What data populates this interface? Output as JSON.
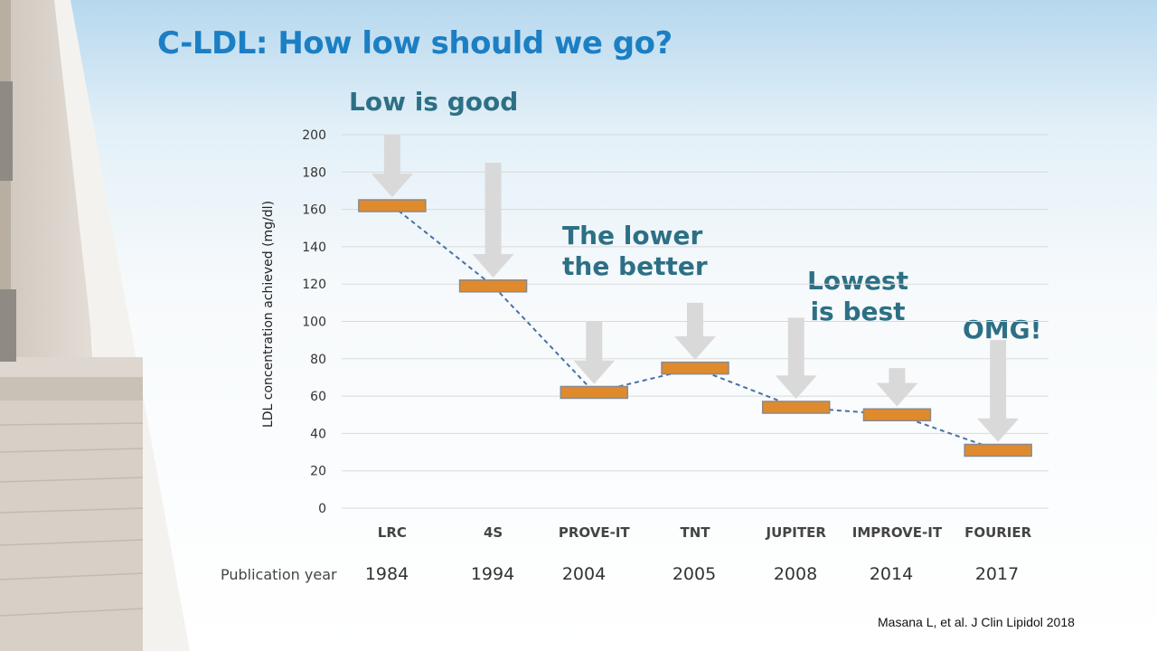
{
  "slide": {
    "title": "C-LDL: How low should we go?",
    "citation": "Masana L, et al. J Clin Lipidol 2018",
    "callouts": {
      "low_is_good": "Low is good",
      "lower_better_1": "The lower",
      "lower_better_2": "the better",
      "lowest_best_1": "Lowest",
      "lowest_best_2": "is best",
      "omg": "OMG!"
    }
  },
  "colors": {
    "title": "#1c7fc4",
    "callout": "#2d7085",
    "bar_fill": "#e08a2e",
    "bar_stroke": "#8a8a8a",
    "arrow": "#d9d9d9",
    "trend_line": "#4a6fa5",
    "gridline": "#d9d9d9"
  },
  "chart_data": {
    "type": "line",
    "ylabel": "LDL concentration achieved  (mg/dl)",
    "ylim": [
      0,
      200
    ],
    "yticks": [
      0,
      20,
      40,
      60,
      80,
      100,
      120,
      140,
      160,
      180,
      200
    ],
    "grid": true,
    "categories": [
      "LRC",
      "4S",
      "PROVE-IT",
      "TNT",
      "JUPITER",
      "IMPROVE-IT",
      "FOURIER"
    ],
    "x_secondary_label": "Publication year",
    "years": [
      "1984",
      "1994",
      "2004",
      "2005",
      "2008",
      "2014",
      "2017"
    ],
    "values": [
      162,
      119,
      62,
      75,
      54,
      50,
      31
    ],
    "arrow_start": [
      200,
      185,
      100,
      110,
      102,
      75,
      90
    ],
    "marker": "orange-bar",
    "connector": "dashed"
  }
}
